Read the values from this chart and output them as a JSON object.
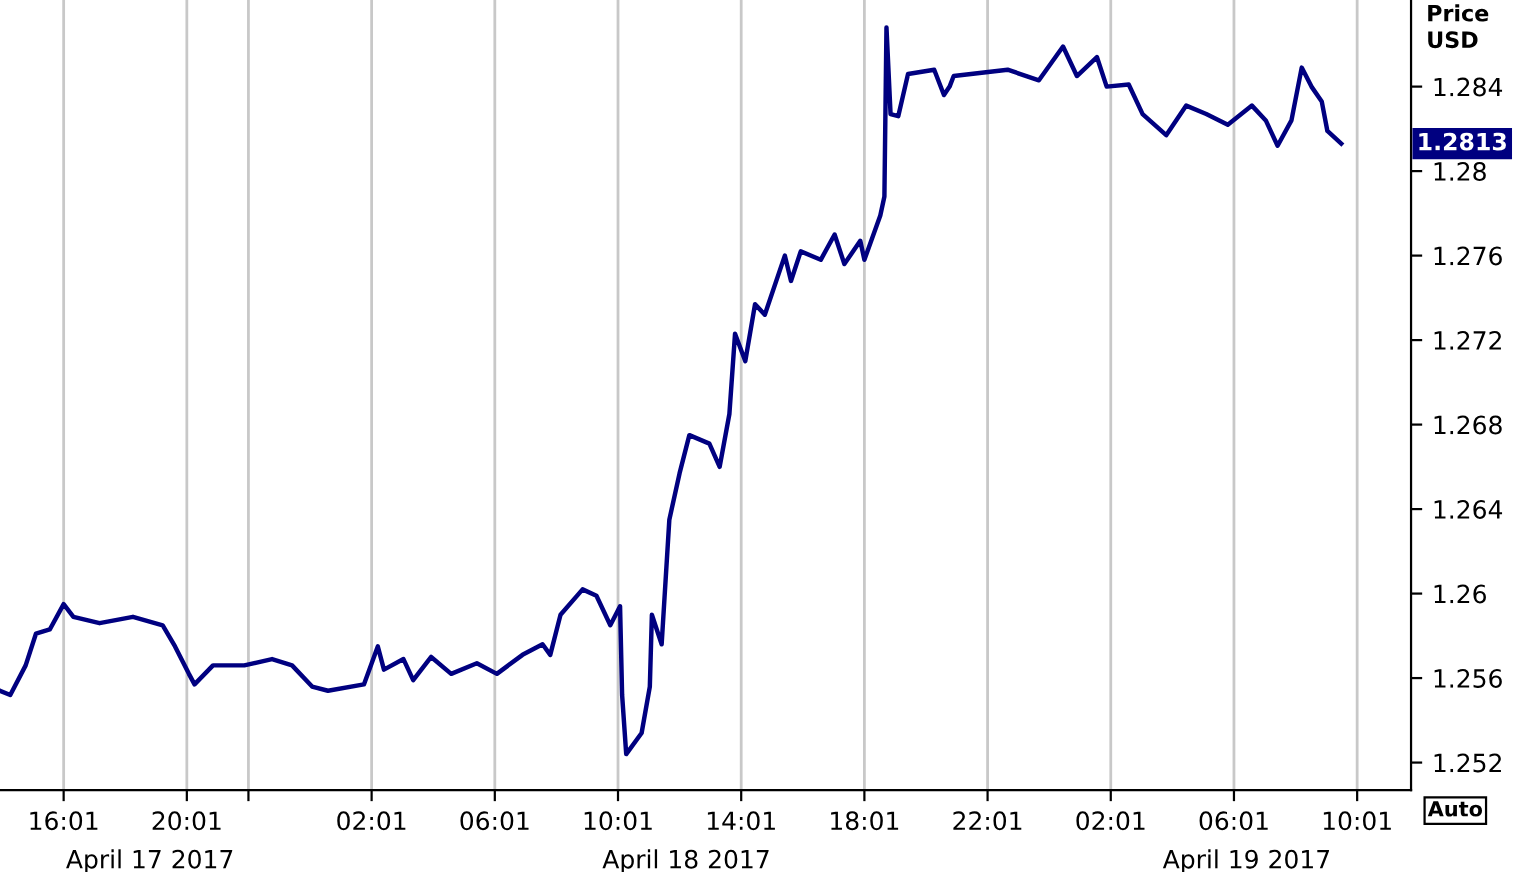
{
  "chart_data": {
    "type": "line",
    "ylabel": "Price\nUSD",
    "x": [
      "2017-04-17T13:57",
      "2017-04-17T14:17",
      "2017-04-17T14:47",
      "2017-04-17T15:07",
      "2017-04-17T15:34",
      "2017-04-17T16:01",
      "2017-04-17T16:20",
      "2017-04-17T17:11",
      "2017-04-17T18:16",
      "2017-04-17T19:14",
      "2017-04-17T19:38",
      "2017-04-17T20:05",
      "2017-04-17T20:16",
      "2017-04-17T20:52",
      "2017-04-17T21:53",
      "2017-04-17T22:47",
      "2017-04-17T23:26",
      "2017-04-18T00:05",
      "2017-04-18T00:36",
      "2017-04-18T01:46",
      "2017-04-18T02:13",
      "2017-04-18T02:25",
      "2017-04-18T03:03",
      "2017-04-18T03:22",
      "2017-04-18T03:57",
      "2017-04-18T04:36",
      "2017-04-18T05:26",
      "2017-04-18T06:05",
      "2017-04-18T06:55",
      "2017-04-18T07:34",
      "2017-04-18T07:49",
      "2017-04-18T08:09",
      "2017-04-18T08:52",
      "2017-04-18T09:19",
      "2017-04-18T09:46",
      "2017-04-18T10:05",
      "2017-04-18T10:09",
      "2017-04-18T10:17",
      "2017-04-18T10:47",
      "2017-04-18T11:03",
      "2017-04-18T11:07",
      "2017-04-18T11:26",
      "2017-04-18T11:41",
      "2017-04-18T12:01",
      "2017-04-18T12:20",
      "2017-04-18T12:59",
      "2017-04-18T13:19",
      "2017-04-18T13:38",
      "2017-04-18T13:49",
      "2017-04-18T14:09",
      "2017-04-18T14:28",
      "2017-04-18T14:47",
      "2017-04-18T15:26",
      "2017-04-18T15:38",
      "2017-04-18T15:57",
      "2017-04-18T16:36",
      "2017-04-18T17:03",
      "2017-04-18T17:22",
      "2017-04-18T17:53",
      "2017-04-18T18:01",
      "2017-04-18T18:32",
      "2017-04-18T18:40",
      "2017-04-18T18:44",
      "2017-04-18T18:52",
      "2017-04-18T19:07",
      "2017-04-18T19:26",
      "2017-04-18T20:17",
      "2017-04-18T20:36",
      "2017-04-18T20:47",
      "2017-04-18T20:55",
      "2017-04-18T22:40",
      "2017-04-18T23:41",
      "2017-04-19T00:28",
      "2017-04-19T00:55",
      "2017-04-19T01:34",
      "2017-04-19T01:53",
      "2017-04-19T02:36",
      "2017-04-19T03:03",
      "2017-04-19T03:49",
      "2017-04-19T04:28",
      "2017-04-19T05:07",
      "2017-04-19T05:49",
      "2017-04-19T06:36",
      "2017-04-19T07:03",
      "2017-04-19T07:26",
      "2017-04-19T07:53",
      "2017-04-19T08:13",
      "2017-04-19T08:32",
      "2017-04-19T08:52",
      "2017-04-19T09:03",
      "2017-04-19T09:30"
    ],
    "series": [
      {
        "color": "#000080",
        "values": [
          1.2554,
          1.2552,
          1.2566,
          1.2581,
          1.2583,
          1.2595,
          1.2589,
          1.2586,
          1.2589,
          1.2585,
          1.2575,
          1.2562,
          1.2557,
          1.2566,
          1.2566,
          1.2569,
          1.2566,
          1.2556,
          1.2554,
          1.2557,
          1.2575,
          1.2564,
          1.2569,
          1.2559,
          1.257,
          1.2562,
          1.2567,
          1.2562,
          1.2571,
          1.2576,
          1.2571,
          1.259,
          1.2602,
          1.2599,
          1.2585,
          1.2594,
          1.2552,
          1.2524,
          1.2534,
          1.2556,
          1.259,
          1.2576,
          1.2635,
          1.2657,
          1.2675,
          1.2671,
          1.266,
          1.2685,
          1.2723,
          1.271,
          1.2737,
          1.2732,
          1.276,
          1.2748,
          1.2762,
          1.2758,
          1.277,
          1.2756,
          1.2767,
          1.2758,
          1.2779,
          1.2788,
          1.2868,
          1.2827,
          1.2826,
          1.2846,
          1.2848,
          1.2836,
          1.284,
          1.2845,
          1.2848,
          1.2843,
          1.2859,
          1.2845,
          1.2854,
          1.284,
          1.2841,
          1.2827,
          1.2817,
          1.2831,
          1.2827,
          1.2822,
          1.2831,
          1.2824,
          1.2812,
          1.2824,
          1.2849,
          1.284,
          1.2833,
          1.2819,
          1.2813
        ]
      }
    ],
    "xlim": [
      "2017-04-17T13:57",
      "2017-04-19T11:46"
    ],
    "xticks": [
      {
        "value": "2017-04-17T16:01",
        "label": "16:01"
      },
      {
        "value": "2017-04-17T20:01",
        "label": "20:01"
      },
      {
        "value": "2017-04-17T22:01",
        "label": null
      },
      {
        "value": "2017-04-18T02:01",
        "label": "02:01"
      },
      {
        "value": "2017-04-18T06:01",
        "label": "06:01"
      },
      {
        "value": "2017-04-18T10:01",
        "label": "10:01"
      },
      {
        "value": "2017-04-18T14:01",
        "label": "14:01"
      },
      {
        "value": "2017-04-18T18:01",
        "label": "18:01"
      },
      {
        "value": "2017-04-18T22:01",
        "label": "22:01"
      },
      {
        "value": "2017-04-19T02:01",
        "label": "02:01"
      },
      {
        "value": "2017-04-19T06:01",
        "label": "06:01"
      },
      {
        "value": "2017-04-19T10:01",
        "label": "10:01"
      }
    ],
    "ylim": [
      1.2507,
      1.2881
    ],
    "yticks": [
      1.252,
      1.256,
      1.26,
      1.264,
      1.268,
      1.272,
      1.276,
      1.28,
      1.284
    ],
    "grid": "x",
    "line_style": "solid",
    "marker": "none",
    "annotations": [
      "1.2813",
      "April 17 2017",
      "April 18 2017",
      "April 19 2017",
      "Auto"
    ]
  }
}
